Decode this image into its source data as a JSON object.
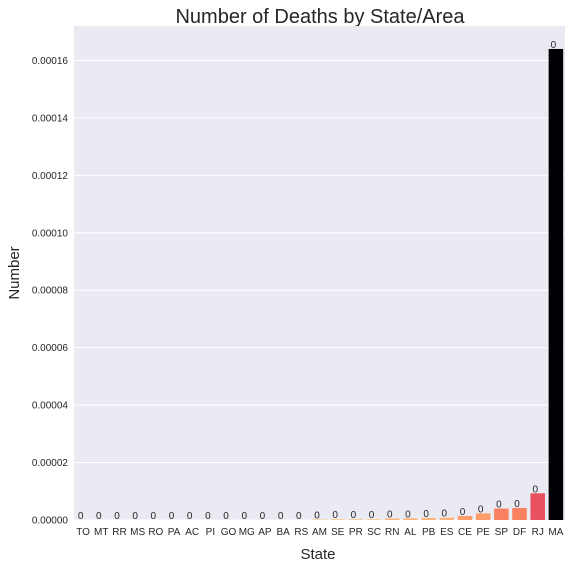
{
  "chart_data": {
    "type": "bar",
    "title": "Number of Deaths by State/Area",
    "xlabel": "State",
    "ylabel": "Number",
    "categories": [
      "TO",
      "MT",
      "RR",
      "MS",
      "RO",
      "PA",
      "AC",
      "PI",
      "GO",
      "MG",
      "AP",
      "BA",
      "RS",
      "AM",
      "SE",
      "PR",
      "SC",
      "RN",
      "AL",
      "PB",
      "ES",
      "CE",
      "PE",
      "SP",
      "DF",
      "RJ",
      "MA"
    ],
    "values": [
      0.0,
      0.0,
      0.0,
      0.0,
      0.0,
      0.0,
      0.0,
      0.0,
      0.0,
      0.0,
      0.0,
      0.0,
      0.0,
      2e-07,
      3e-07,
      3e-07,
      3e-07,
      5e-07,
      6e-07,
      7e-07,
      8e-07,
      1.4e-06,
      2.3e-06,
      4e-06,
      4.2e-06,
      9.3e-06,
      0.000164
    ],
    "bar_labels": [
      "0",
      "0",
      "0",
      "0",
      "0",
      "0",
      "0",
      "0",
      "0",
      "0",
      "0",
      "0",
      "0",
      "0",
      "0",
      "0",
      "0",
      "0",
      "0",
      "0",
      "0",
      "0",
      "0",
      "0",
      "0",
      "0",
      "0"
    ],
    "ylim": [
      0,
      0.000172
    ],
    "yticks": [
      0,
      2e-05,
      4e-05,
      6e-05,
      8e-05,
      0.0001,
      0.00012,
      0.00014,
      0.00016
    ],
    "ytick_labels": [
      "0.00000",
      "0.00002",
      "0.00004",
      "0.00006",
      "0.00008",
      "0.00010",
      "0.00012",
      "0.00014",
      "0.00016"
    ],
    "grid": true,
    "colors": {
      "plot_background": "#EAEAF2",
      "grid": "#FFFFFF",
      "palette": [
        "#FCFDBF",
        "#FDE5A7",
        "#FECD90",
        "#FEB57C",
        "#FD9B6B",
        "#FA815F",
        "#F4685C",
        "#E8525E",
        "#D6456C",
        "#C13B75",
        "#AB337C",
        "#962C80",
        "#812581",
        "#6C1D81",
        "#57157E",
        "#421278",
        "#2D1160",
        "#1A0F3A",
        "#0B0723",
        "#000004"
      ]
    }
  }
}
